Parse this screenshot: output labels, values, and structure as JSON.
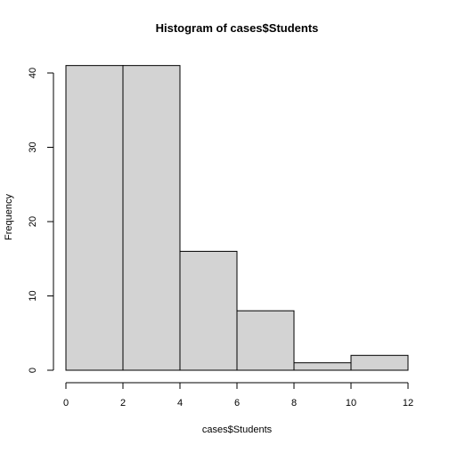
{
  "chart_data": {
    "type": "histogram",
    "title": "Histogram of cases$Students",
    "xlabel": "cases$Students",
    "ylabel": "Frequency",
    "bins": [
      {
        "start": 0,
        "end": 2,
        "count": 41
      },
      {
        "start": 2,
        "end": 4,
        "count": 41
      },
      {
        "start": 4,
        "end": 6,
        "count": 16
      },
      {
        "start": 6,
        "end": 8,
        "count": 8
      },
      {
        "start": 8,
        "end": 10,
        "count": 1
      },
      {
        "start": 10,
        "end": 12,
        "count": 2
      }
    ],
    "xlim": [
      0,
      12
    ],
    "ylim": [
      0,
      42
    ],
    "x_ticks": [
      "0",
      "2",
      "4",
      "6",
      "8",
      "10",
      "12"
    ],
    "y_ticks": [
      "0",
      "10",
      "20",
      "30",
      "40"
    ],
    "grid": false,
    "bar_fill": "#d3d3d3",
    "bar_stroke": "#000000"
  }
}
